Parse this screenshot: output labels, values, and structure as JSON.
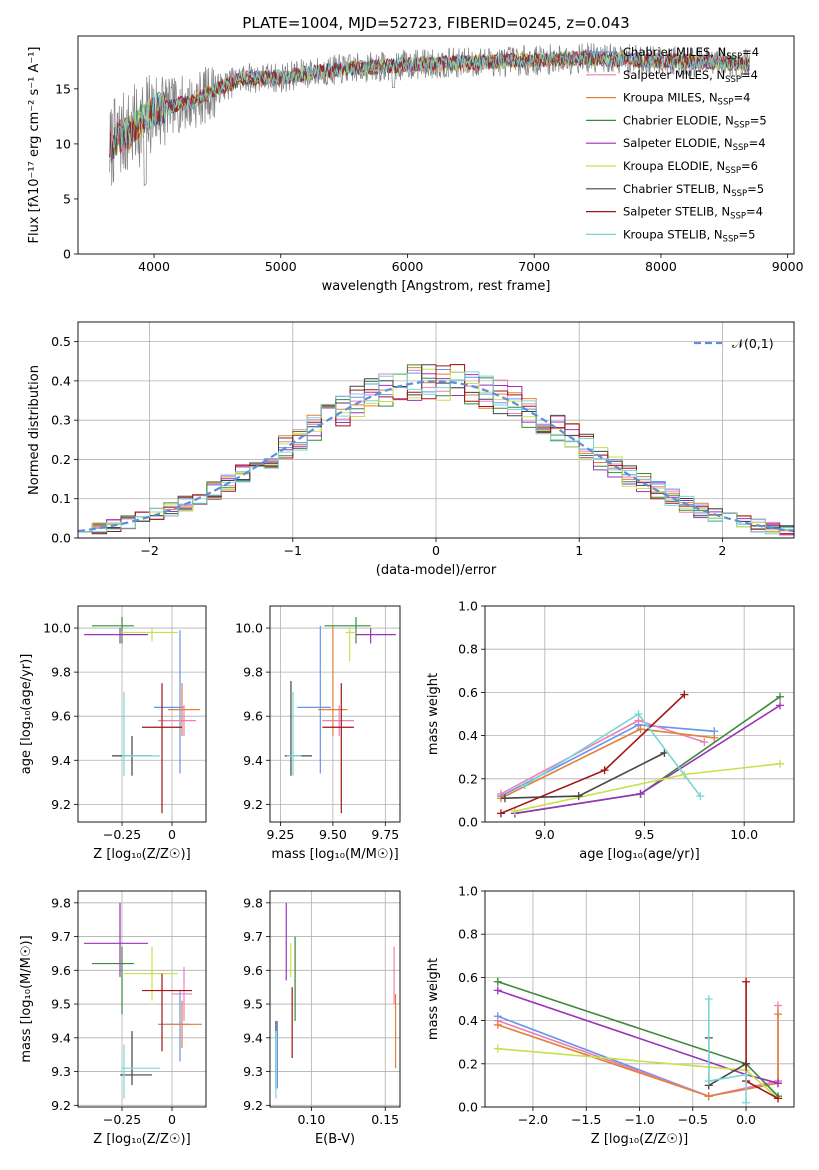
{
  "colors": [
    "#6495ed",
    "#ec80b4",
    "#e2803a",
    "#3a8a3a",
    "#9a33b8",
    "#c8e14a",
    "#444444",
    "#a01515",
    "#7ad6d6"
  ],
  "chart_data": [
    {
      "id": "spectrum",
      "type": "line",
      "title": "PLATE=1004, MJD=52723, FIBERID=0245, z=0.043",
      "xlabel": "wavelength [Angstrom, rest frame]",
      "ylabel": "Flux [fλ10⁻¹⁷ erg cm⁻² s⁻¹ A⁻¹]",
      "xlim": [
        3400,
        9050
      ],
      "ylim": [
        0,
        19.8
      ],
      "xticks": [
        4000,
        5000,
        6000,
        7000,
        8000,
        9000
      ],
      "yticks": [
        0,
        5,
        10,
        15
      ],
      "legend_position": "upper-right",
      "series": [
        {
          "name": "Chabrier MILES, N_SSP=4"
        },
        {
          "name": "Salpeter MILES, N_SSP=4"
        },
        {
          "name": "Kroupa MILES, N_SSP=4"
        },
        {
          "name": "Chabrier ELODIE, N_SSP=5"
        },
        {
          "name": "Salpeter ELODIE, N_SSP=4"
        },
        {
          "name": "Kroupa ELODIE, N_SSP=6"
        },
        {
          "name": "Chabrier STELIB, N_SSP=5"
        },
        {
          "name": "Salpeter STELIB, N_SSP=4"
        },
        {
          "name": "Kroupa STELIB, N_SSP=5"
        }
      ],
      "continuum": [
        [
          3650,
          9.5
        ],
        [
          3700,
          10.5
        ],
        [
          3800,
          11
        ],
        [
          3900,
          12
        ],
        [
          4000,
          13
        ],
        [
          4100,
          13.3
        ],
        [
          4200,
          13.6
        ],
        [
          4300,
          13.8
        ],
        [
          4500,
          15
        ],
        [
          4700,
          16
        ],
        [
          5000,
          16
        ],
        [
          5200,
          16.4
        ],
        [
          5500,
          16.8
        ],
        [
          6000,
          17.2
        ],
        [
          6500,
          17.4
        ],
        [
          7000,
          17.6
        ],
        [
          7400,
          17.8
        ]
      ],
      "model_cutoffs": {
        "Kroupa ELODIE": 6800,
        "Kroupa MILES": 7420
      }
    },
    {
      "id": "residuals",
      "type": "step",
      "xlabel": "(data-model)/error",
      "ylabel": "Normed distribution",
      "xlim": [
        -2.5,
        2.5
      ],
      "ylim": [
        0,
        0.55
      ],
      "xticks": [
        -2,
        -1,
        0,
        1,
        2
      ],
      "yticks": [
        0.0,
        0.1,
        0.2,
        0.3,
        0.4,
        0.5
      ],
      "grid": true,
      "legend_position": "upper-right",
      "reference_curve": {
        "name": "𝒩(0,1)",
        "style": "dashed"
      }
    },
    {
      "id": "age-vs-Z",
      "type": "errorbar",
      "xlabel": "Z [log₁₀(Z/Z☉)]",
      "ylabel": "age  [log₁₀(age/yr)]",
      "xlim": [
        -0.47,
        0.17
      ],
      "ylim": [
        9.12,
        10.1
      ],
      "xticks": [
        -0.25,
        0.0
      ],
      "yticks": [
        9.2,
        9.4,
        9.6,
        9.8,
        10.0
      ],
      "grid": true,
      "points": [
        {
          "x": 0.04,
          "y": 9.64,
          "xerr": [
            0.13,
            0.02
          ],
          "yerr": [
            0.3,
            0.35
          ]
        },
        {
          "x": 0.06,
          "y": 9.58,
          "xerr": [
            0.13,
            0.06
          ],
          "yerr": [
            0.07,
            0.07
          ]
        },
        {
          "x": 0.05,
          "y": 9.63,
          "xerr": [
            0.07,
            0.09
          ],
          "yerr": [
            0.12,
            0.12
          ]
        },
        {
          "x": -0.25,
          "y": 10.01,
          "xerr": [
            0.15,
            0.06
          ],
          "yerr": [
            0.08,
            0.04
          ]
        },
        {
          "x": -0.26,
          "y": 9.97,
          "xerr": [
            0.18,
            0.14
          ],
          "yerr": [
            0.04,
            0.03
          ]
        },
        {
          "x": -0.1,
          "y": 9.98,
          "xerr": [
            0.15,
            0.13
          ],
          "yerr": [
            0.04,
            0.02
          ]
        },
        {
          "x": -0.2,
          "y": 9.42,
          "xerr": [
            0.1,
            0.1
          ],
          "yerr": [
            0.09,
            0.09
          ]
        },
        {
          "x": -0.05,
          "y": 9.55,
          "xerr": [
            0.1,
            0.1
          ],
          "yerr": [
            0.39,
            0.2
          ]
        },
        {
          "x": -0.24,
          "y": 9.42,
          "xerr": [
            0.01,
            0.18
          ],
          "yerr": [
            0.09,
            0.29
          ]
        }
      ]
    },
    {
      "id": "age-vs-mass",
      "type": "errorbar",
      "xlabel": "mass [log₁₀(M/M☉)]",
      "ylabel": "",
      "xlim": [
        9.2,
        9.82
      ],
      "ylim": [
        9.12,
        10.1
      ],
      "xticks": [
        9.25,
        9.5,
        9.75
      ],
      "yticks": [
        9.2,
        9.4,
        9.6,
        9.8,
        10.0
      ],
      "grid": true,
      "points": [
        {
          "x": 9.44,
          "y": 9.64,
          "xerr": [
            0.11,
            0.05
          ],
          "yerr": [
            0.3,
            0.37
          ]
        },
        {
          "x": 9.53,
          "y": 9.58,
          "xerr": [
            0.08,
            0.07
          ],
          "yerr": [
            0.07,
            0.07
          ]
        },
        {
          "x": 9.5,
          "y": 9.63,
          "xerr": [
            0.07,
            0.07
          ],
          "yerr": [
            0.12,
            0.38
          ]
        },
        {
          "x": 9.61,
          "y": 10.01,
          "xerr": [
            0.15,
            0.07
          ],
          "yerr": [
            0.08,
            0.04
          ]
        },
        {
          "x": 9.68,
          "y": 9.97,
          "xerr": [
            0.07,
            0.12
          ],
          "yerr": [
            0.04,
            0.03
          ]
        },
        {
          "x": 9.58,
          "y": 9.98,
          "xerr": [
            0.02,
            0.03
          ],
          "yerr": [
            0.13,
            0.02
          ]
        },
        {
          "x": 9.3,
          "y": 9.42,
          "xerr": [
            0.03,
            0.1
          ],
          "yerr": [
            0.09,
            0.34
          ]
        },
        {
          "x": 9.54,
          "y": 9.55,
          "xerr": [
            0.09,
            0.06
          ],
          "yerr": [
            0.39,
            0.2
          ]
        },
        {
          "x": 9.31,
          "y": 9.42,
          "xerr": [
            0.03,
            0.04
          ],
          "yerr": [
            0.09,
            0.29
          ]
        }
      ]
    },
    {
      "id": "massweight-vs-age",
      "type": "line",
      "xlabel": "age  [log₁₀(age/yr)]",
      "ylabel": "mass weight",
      "xlim": [
        8.7,
        10.25
      ],
      "ylim": [
        0,
        1.0
      ],
      "xticks": [
        9.0,
        9.5,
        10.0
      ],
      "yticks": [
        0.0,
        0.2,
        0.4,
        0.6,
        0.8,
        1.0
      ],
      "grid": true,
      "series": [
        {
          "x": [
            8.78,
            9.47,
            9.85
          ],
          "y": [
            0.12,
            0.45,
            0.42
          ]
        },
        {
          "x": [
            8.78,
            9.47,
            9.8
          ],
          "y": [
            0.13,
            0.47,
            0.37
          ]
        },
        {
          "x": [
            8.78,
            9.48,
            9.85
          ],
          "y": [
            0.11,
            0.43,
            0.39
          ]
        },
        {
          "x": [
            8.85,
            9.48,
            10.18
          ],
          "y": [
            0.04,
            0.13,
            0.58
          ]
        },
        {
          "x": [
            8.85,
            9.48,
            10.18
          ],
          "y": [
            0.04,
            0.13,
            0.54
          ]
        },
        {
          "x": [
            8.85,
            9.7,
            10.18
          ],
          "y": [
            0.05,
            0.22,
            0.27
          ]
        },
        {
          "x": [
            8.8,
            9.17,
            9.6
          ],
          "y": [
            0.11,
            0.12,
            0.32
          ]
        },
        {
          "x": [
            8.78,
            9.3,
            9.7
          ],
          "y": [
            0.04,
            0.24,
            0.59
          ]
        },
        {
          "x": [
            8.9,
            9.47,
            9.78
          ],
          "y": [
            0.17,
            0.5,
            0.12
          ]
        }
      ]
    },
    {
      "id": "mass-vs-Z",
      "type": "errorbar",
      "xlabel": "Z [log₁₀(Z/Z☉)]",
      "ylabel": "mass [log₁₀(M/M☉)]",
      "xlim": [
        -0.47,
        0.17
      ],
      "ylim": [
        9.195,
        9.835
      ],
      "xticks": [
        -0.25,
        0.0
      ],
      "yticks": [
        9.2,
        9.3,
        9.4,
        9.5,
        9.6,
        9.7,
        9.8
      ],
      "grid": true,
      "points": [
        {
          "x": 0.04,
          "y": 9.44,
          "xerr": [
            0.11,
            0.05
          ],
          "yerr": [
            0.11,
            0.1
          ]
        },
        {
          "x": 0.06,
          "y": 9.53,
          "xerr": [
            0.06,
            0.04
          ],
          "yerr": [
            0.08,
            0.08
          ]
        },
        {
          "x": 0.05,
          "y": 9.44,
          "xerr": [
            0.1,
            0.1
          ],
          "yerr": [
            0.07,
            0.07
          ]
        },
        {
          "x": -0.25,
          "y": 9.62,
          "xerr": [
            0.15,
            0.06
          ],
          "yerr": [
            0.15,
            0.05
          ]
        },
        {
          "x": -0.26,
          "y": 9.68,
          "xerr": [
            0.18,
            0.14
          ],
          "yerr": [
            0.1,
            0.12
          ]
        },
        {
          "x": -0.1,
          "y": 9.59,
          "xerr": [
            0.15,
            0.13
          ],
          "yerr": [
            0.08,
            0.08
          ]
        },
        {
          "x": -0.2,
          "y": 9.29,
          "xerr": [
            0.06,
            0.1
          ],
          "yerr": [
            0.03,
            0.13
          ]
        },
        {
          "x": -0.05,
          "y": 9.54,
          "xerr": [
            0.1,
            0.15
          ],
          "yerr": [
            0.18,
            0.05
          ]
        },
        {
          "x": -0.24,
          "y": 9.31,
          "xerr": [
            0.01,
            0.18
          ],
          "yerr": [
            0.09,
            0.07
          ]
        }
      ]
    },
    {
      "id": "mass-vs-EBV",
      "type": "errorbar",
      "xlabel": "E(B-V)",
      "ylabel": "",
      "xlim": [
        0.072,
        0.16
      ],
      "ylim": [
        9.195,
        9.835
      ],
      "xticks": [
        0.1,
        0.15
      ],
      "yticks": [
        9.2,
        9.3,
        9.4,
        9.5,
        9.6,
        9.7,
        9.8
      ],
      "grid": true,
      "points": [
        {
          "x": 0.077,
          "y": 9.3,
          "xerr": [
            0,
            0
          ],
          "yerr": [
            0.05,
            0.15
          ]
        },
        {
          "x": 0.156,
          "y": 9.55,
          "xerr": [
            0,
            0
          ],
          "yerr": [
            0.05,
            0.12
          ]
        },
        {
          "x": 0.157,
          "y": 9.43,
          "xerr": [
            0,
            0
          ],
          "yerr": [
            0.12,
            0.1
          ]
        },
        {
          "x": 0.089,
          "y": 9.6,
          "xerr": [
            0,
            0
          ],
          "yerr": [
            0.15,
            0.1
          ]
        },
        {
          "x": 0.083,
          "y": 9.65,
          "xerr": [
            0,
            0
          ],
          "yerr": [
            0.08,
            0.15
          ]
        },
        {
          "x": 0.086,
          "y": 9.6,
          "xerr": [
            0,
            0
          ],
          "yerr": [
            0.02,
            0.08
          ]
        },
        {
          "x": 0.076,
          "y": 9.35,
          "xerr": [
            0,
            0
          ],
          "yerr": [
            0.1,
            0.1
          ]
        },
        {
          "x": 0.087,
          "y": 9.45,
          "xerr": [
            0,
            0
          ],
          "yerr": [
            0.11,
            0.1
          ]
        },
        {
          "x": 0.076,
          "y": 9.32,
          "xerr": [
            0,
            0
          ],
          "yerr": [
            0.1,
            0.1
          ]
        }
      ]
    },
    {
      "id": "massweight-vs-Z",
      "type": "line",
      "xlabel": "Z [log₁₀(Z/Z☉)]",
      "ylabel": "mass weight",
      "xlim": [
        -2.45,
        0.45
      ],
      "ylim": [
        0,
        1.0
      ],
      "xticks": [
        -2.0,
        -1.5,
        -1.0,
        -0.5,
        0.0
      ],
      "yticks": [
        0.0,
        0.2,
        0.4,
        0.6,
        0.8,
        1.0
      ],
      "grid": true,
      "series": [
        {
          "x": [
            -2.33,
            -0.35,
            0.3
          ],
          "y": [
            0.42,
            0.05,
            0.12
          ]
        },
        {
          "x": [
            -2.33,
            -0.35,
            0.3,
            0.3
          ],
          "y": [
            0.4,
            0.05,
            0.12,
            0.47
          ]
        },
        {
          "x": [
            -2.33,
            -0.35,
            0.3,
            0.3
          ],
          "y": [
            0.38,
            0.05,
            0.11,
            0.43
          ]
        },
        {
          "x": [
            -2.33,
            0.0,
            0.3
          ],
          "y": [
            0.58,
            0.2,
            0.05
          ]
        },
        {
          "x": [
            -2.33,
            0.0,
            0.3
          ],
          "y": [
            0.54,
            0.15,
            0.11
          ]
        },
        {
          "x": [
            -2.33,
            0.0,
            0.3
          ],
          "y": [
            0.27,
            0.17,
            0.04
          ]
        },
        {
          "x": [
            -0.35,
            -0.35,
            0.0
          ],
          "y": [
            0.32,
            0.1,
            0.2
          ]
        },
        {
          "x": [
            0.0,
            0.0,
            0.3
          ],
          "y": [
            0.58,
            0.12,
            0.04
          ]
        },
        {
          "x": [
            -0.35,
            -0.35,
            0.0,
            0.0
          ],
          "y": [
            0.5,
            0.12,
            0.15,
            0.02
          ]
        }
      ]
    }
  ]
}
